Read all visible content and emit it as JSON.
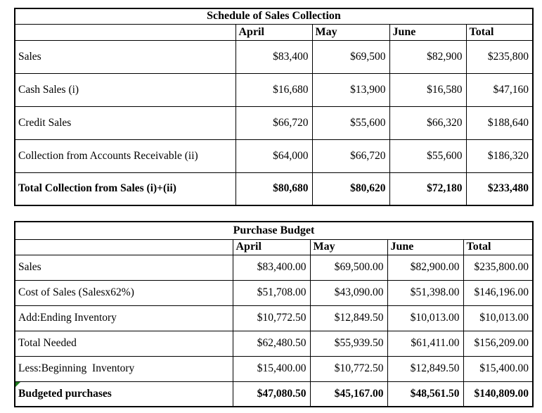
{
  "report": {
    "colors": {
      "text": "#000000",
      "border": "#000000",
      "background": "#ffffff",
      "cell_flag_green": "#1e7b1e"
    },
    "tables": [
      {
        "name": "sales-collection",
        "title": "Schedule of Sales Collection",
        "columns": [
          "",
          "April",
          "May",
          "June",
          "Total"
        ],
        "rows": [
          {
            "label": "Sales",
            "bold": false,
            "flag": false,
            "values": [
              "$83,400",
              "$69,500",
              "$82,900",
              "$235,800"
            ]
          },
          {
            "label": "Cash Sales (i)",
            "bold": false,
            "flag": false,
            "values": [
              "$16,680",
              "$13,900",
              "$16,580",
              "$47,160"
            ]
          },
          {
            "label": "Credit Sales",
            "bold": false,
            "flag": false,
            "values": [
              "$66,720",
              "$55,600",
              "$66,320",
              "$188,640"
            ]
          },
          {
            "label": "Collection from Accounts Receivable (ii)",
            "bold": false,
            "flag": false,
            "values": [
              "$64,000",
              "$66,720",
              "$55,600",
              "$186,320"
            ]
          },
          {
            "label": "Total Collection from Sales (i)+(ii)",
            "bold": true,
            "flag": false,
            "values": [
              "$80,680",
              "$80,620",
              "$72,180",
              "$233,480"
            ]
          }
        ]
      },
      {
        "name": "purchase-budget",
        "title": "Purchase Budget",
        "columns": [
          "",
          "April",
          "May",
          "June",
          "Total"
        ],
        "rows": [
          {
            "label": "Sales",
            "bold": false,
            "flag": false,
            "values": [
              "$83,400.00",
              "$69,500.00",
              "$82,900.00",
              "$235,800.00"
            ]
          },
          {
            "label": "Cost of Sales (Salesx62%)",
            "bold": false,
            "flag": false,
            "values": [
              "$51,708.00",
              "$43,090.00",
              "$51,398.00",
              "$146,196.00"
            ]
          },
          {
            "label": "Add:Ending Inventory",
            "bold": false,
            "flag": false,
            "values": [
              "$10,772.50",
              "$12,849.50",
              "$10,013.00",
              "$10,013.00"
            ]
          },
          {
            "label": "Total Needed",
            "bold": false,
            "flag": false,
            "values": [
              "$62,480.50",
              "$55,939.50",
              "$61,411.00",
              "$156,209.00"
            ]
          },
          {
            "label": "Less:Beginning  Inventory",
            "bold": false,
            "flag": false,
            "values": [
              "$15,400.00",
              "$10,772.50",
              "$12,849.50",
              "$15,400.00"
            ]
          },
          {
            "label": "Budgeted purchases",
            "bold": true,
            "flag": true,
            "values": [
              "$47,080.50",
              "$45,167.00",
              "$48,561.50",
              "$140,809.00"
            ]
          }
        ]
      }
    ]
  }
}
